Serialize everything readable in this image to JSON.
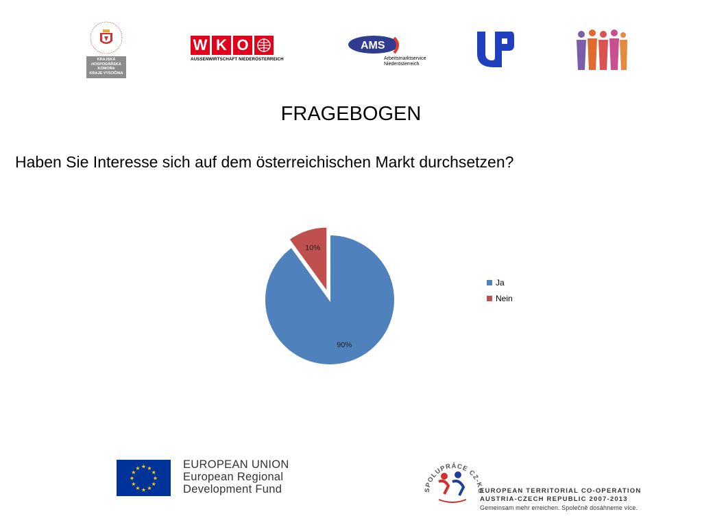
{
  "logos": {
    "hk_box_lines": [
      "KRAJSKÁ",
      "HOSPODÁŘSKÁ",
      "KOMORA",
      "KRAJE VYSOČINA"
    ],
    "wko_letters": [
      "W",
      "K",
      "O"
    ],
    "wko_subtitle": "AUSSENWIRTSCHAFT NIEDERÖSTERREICH",
    "ams_brand": "AMS",
    "ams_subtitle_lines": [
      "Arbeitsmarktservice",
      "Niederösterreich"
    ],
    "eu_lines": [
      "EUROPEAN UNION",
      "European Regional",
      "Development Fund"
    ],
    "etc_lines": [
      "EUROPEAN TERRITORIAL CO-OPERATION",
      "AUSTRIA-CZECH REPUBLIC 2007-2013",
      "Gemeinsam mehr erreichen. Společně dosáhneme více."
    ],
    "coop_ring_text": "SPOLUPRÁCE CZ-KOOPERATION AT-"
  },
  "title": "FRAGEBOGEN",
  "question": "Haben Sie Interesse sich auf dem österreichischen Markt durchsetzen?",
  "colors": {
    "ja": "#4f81bd",
    "nein": "#c0504d"
  },
  "chart_data": {
    "type": "pie",
    "categories": [
      "Ja",
      "Nein"
    ],
    "values": [
      90,
      10
    ],
    "data_labels": [
      "90%",
      "10%"
    ],
    "exploded": "Nein",
    "legend": "right"
  }
}
